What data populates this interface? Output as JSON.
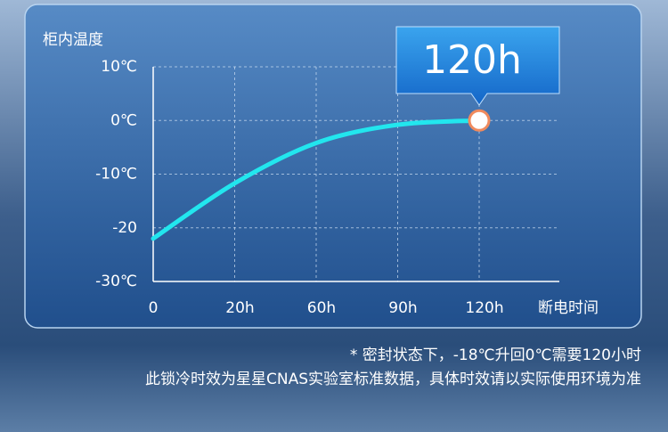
{
  "chart_data": {
    "type": "line",
    "y_label": "柜内温度",
    "x_label": "断电时间",
    "categories": [
      "0",
      "20h",
      "60h",
      "90h",
      "120h"
    ],
    "values": [
      -22,
      -11.7,
      -4.2,
      -0.8,
      0
    ],
    "color": "#22e6ee",
    "marker_color": "#f08a5d",
    "ylim": [
      -30,
      10
    ],
    "yticks": [
      {
        "value": -30,
        "label": "-30℃"
      },
      -20,
      {
        "value": -10,
        "label": "-10℃"
      },
      {
        "value": 0,
        "label": "0℃"
      },
      {
        "value": 10,
        "label": "10℃"
      }
    ],
    "grid": true,
    "annotation": "120h",
    "notes": [
      "* 密封状态下，-18℃升回0℃需要120小时",
      "此锁冷时效为星星CNAS实验室标准数据，具体时效请以实际使用环境为准"
    ]
  }
}
